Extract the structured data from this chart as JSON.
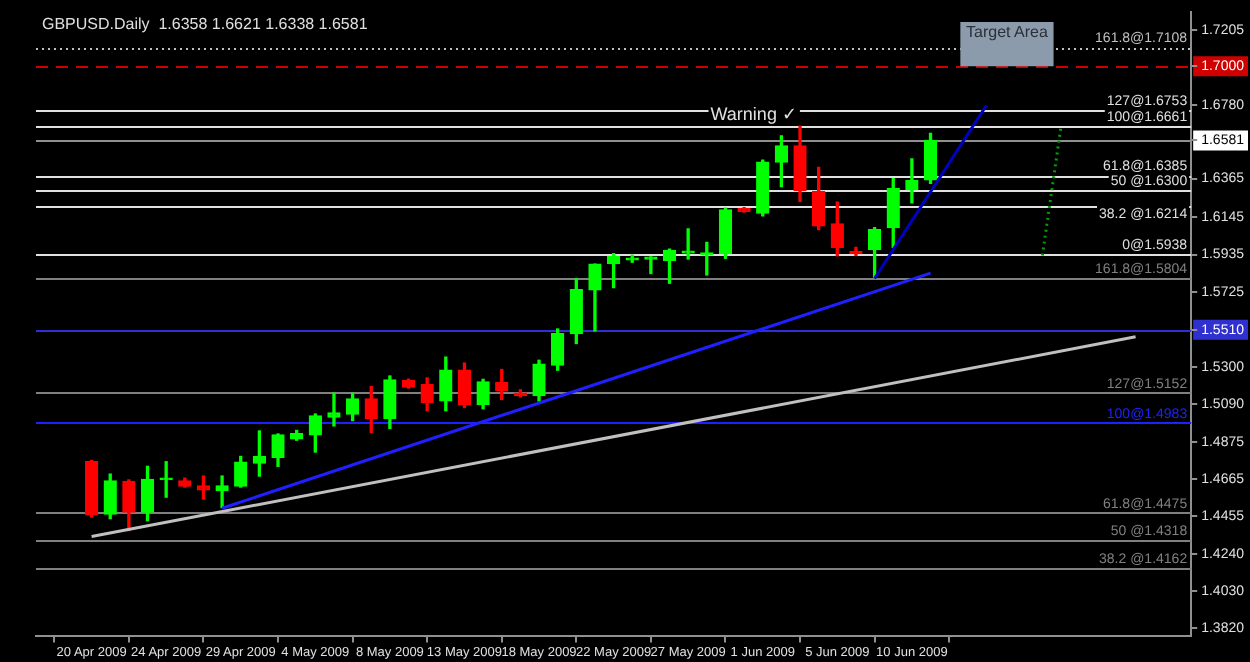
{
  "chart_data": {
    "type": "candlestick",
    "title": "GBPUSD.Daily  1.6358 1.6621 1.6338 1.6581",
    "categories": [
      "20 Apr 2009",
      null,
      null,
      null,
      "24 Apr 2009",
      null,
      null,
      null,
      "29 Apr 2009",
      null,
      null,
      null,
      "4 May 2009",
      null,
      null,
      null,
      "8 May 2009",
      null,
      null,
      null,
      "13 May 2009",
      null,
      null,
      null,
      "18 May 2009",
      null,
      null,
      null,
      "22 May 2009",
      null,
      null,
      null,
      "27 May 2009",
      null,
      null,
      null,
      "1 Jun 2009",
      null,
      null,
      null,
      "5 Jun 2009",
      null,
      null,
      null,
      "10 Jun 2009",
      null,
      null,
      null,
      null,
      null,
      null,
      null,
      null,
      null,
      null,
      null,
      null
    ],
    "ohlc": [
      [
        1.4763,
        1.477,
        1.445,
        1.4463
      ],
      [
        1.4467,
        1.4693,
        1.4441,
        1.4655
      ],
      [
        1.4652,
        1.466,
        1.4374,
        1.4478
      ],
      [
        1.4478,
        1.4737,
        1.443,
        1.4663
      ],
      [
        1.4663,
        1.4763,
        1.4563,
        1.467
      ],
      [
        1.4655,
        1.467,
        1.462,
        1.4626
      ],
      [
        1.4626,
        1.4682,
        1.4552,
        1.4604
      ],
      [
        1.46,
        1.4682,
        1.4504,
        1.4626
      ],
      [
        1.4626,
        1.4793,
        1.462,
        1.476
      ],
      [
        1.4755,
        1.4937,
        1.4682,
        1.4793
      ],
      [
        1.4788,
        1.492,
        1.4737,
        1.4915
      ],
      [
        1.4893,
        1.494,
        1.4885,
        1.4922
      ],
      [
        1.4915,
        1.5033,
        1.4818,
        1.5022
      ],
      [
        1.5015,
        1.5151,
        1.4966,
        1.504
      ],
      [
        1.5033,
        1.5151,
        1.4996,
        1.5118
      ],
      [
        1.5118,
        1.5188,
        1.4929,
        1.5007
      ],
      [
        1.5007,
        1.5248,
        1.4952,
        1.5226
      ],
      [
        1.5222,
        1.523,
        1.518,
        1.5185
      ],
      [
        1.5199,
        1.5237,
        1.5052,
        1.5099
      ],
      [
        1.5107,
        1.5355,
        1.5052,
        1.5281
      ],
      [
        1.5281,
        1.5321,
        1.507,
        1.5085
      ],
      [
        1.5088,
        1.5229,
        1.5063,
        1.5215
      ],
      [
        1.521,
        1.5285,
        1.5115,
        1.5166
      ],
      [
        1.5151,
        1.517,
        1.513,
        1.5137
      ],
      [
        1.5137,
        1.5337,
        1.5107,
        1.5315
      ],
      [
        1.531,
        1.5514,
        1.5281,
        1.5488
      ],
      [
        1.5488,
        1.5799,
        1.5432,
        1.5736
      ],
      [
        1.5736,
        1.5881,
        1.5503,
        1.5881
      ],
      [
        1.5884,
        1.594,
        1.5748,
        1.5925
      ],
      [
        1.5905,
        1.5932,
        1.5892,
        1.5915
      ],
      [
        1.591,
        1.5922,
        1.5828,
        1.592
      ],
      [
        1.5903,
        1.5966,
        1.5773,
        1.5958
      ],
      [
        1.5945,
        1.608,
        1.591,
        1.5955
      ],
      [
        1.5935,
        1.6004,
        1.582,
        1.5945
      ],
      [
        1.594,
        1.6198,
        1.5914,
        1.6187
      ],
      [
        1.6195,
        1.62,
        1.6175,
        1.618
      ],
      [
        1.6169,
        1.6469,
        1.6154,
        1.6458
      ],
      [
        1.6458,
        1.6606,
        1.632,
        1.655
      ],
      [
        1.655,
        1.6661,
        1.6236,
        1.6298
      ],
      [
        1.6291,
        1.6428,
        1.6076,
        1.6098
      ],
      [
        1.6109,
        1.6231,
        1.5928,
        1.5976
      ],
      [
        1.5952,
        1.5976,
        1.593,
        1.594
      ],
      [
        1.5965,
        1.6087,
        1.5804,
        1.6076
      ],
      [
        1.6087,
        1.6365,
        1.5976,
        1.6309
      ],
      [
        1.6302,
        1.6476,
        1.6228,
        1.6354
      ],
      [
        1.6358,
        1.6621,
        1.6338,
        1.6581
      ],
      null,
      null,
      null,
      null,
      null,
      null,
      null,
      null,
      null,
      null,
      null
    ],
    "colors": [
      "#ff0000",
      "#00ff00",
      "#ff0000",
      "#00ff00",
      "#00ff00",
      "#ff0000",
      "#ff0000",
      "#00ff00",
      "#00ff00",
      "#00ff00",
      "#00ff00",
      "#00ff00",
      "#00ff00",
      "#00ff00",
      "#00ff00",
      "#ff0000",
      "#00ff00",
      "#ff0000",
      "#ff0000",
      "#00ff00",
      "#ff0000",
      "#00ff00",
      "#ff0000",
      "#ff0000",
      "#00ff00",
      "#00ff00",
      "#00ff00",
      "#00ff00",
      "#00ff00",
      "#00ff00",
      "#00ff00",
      "#00ff00",
      "#00ff00",
      "#00ff00",
      "#00ff00",
      "#ff0000",
      "#00ff00",
      "#00ff00",
      "#ff0000",
      "#ff0000",
      "#ff0000",
      "#ff0000",
      "#00ff00",
      "#00ff00",
      "#00ff00",
      "#00ff00",
      null,
      null,
      null,
      null,
      null,
      null,
      null,
      null,
      null,
      null,
      null
    ],
    "series": [
      {
        "type": "line",
        "color": "#2020ff",
        "values": [
          null,
          null,
          null,
          null,
          null,
          null,
          null,
          1.45,
          null,
          null,
          null,
          null,
          null,
          null,
          null,
          null,
          null,
          null,
          null,
          null,
          null,
          null,
          null,
          null,
          null,
          null,
          null,
          null,
          null,
          null,
          null,
          null,
          null,
          null,
          null,
          null,
          null,
          null,
          null,
          null,
          null,
          null,
          null,
          null,
          null,
          1.583,
          null,
          null,
          null,
          null,
          null,
          null,
          null,
          null,
          null,
          null,
          null
        ],
        "line_style": "solid"
      },
      {
        "type": "line",
        "color": "#0000c0",
        "values": [
          null,
          null,
          null,
          null,
          null,
          null,
          null,
          null,
          null,
          null,
          null,
          null,
          null,
          null,
          null,
          null,
          null,
          null,
          null,
          null,
          null,
          null,
          null,
          null,
          null,
          null,
          null,
          null,
          null,
          null,
          null,
          null,
          null,
          null,
          null,
          null,
          null,
          null,
          null,
          null,
          null,
          null,
          1.58,
          null,
          null,
          null,
          null,
          null,
          1.678,
          null,
          null,
          null,
          null,
          null,
          null,
          null,
          null
        ],
        "line_style": "solid"
      },
      {
        "type": "line",
        "color": "#c0c0c0",
        "values": [
          1.434,
          null,
          null,
          null,
          null,
          null,
          null,
          null,
          null,
          null,
          null,
          null,
          null,
          null,
          null,
          null,
          null,
          null,
          null,
          null,
          null,
          null,
          null,
          null,
          null,
          null,
          null,
          null,
          null,
          null,
          null,
          null,
          null,
          null,
          null,
          null,
          null,
          null,
          null,
          null,
          null,
          null,
          null,
          null,
          null,
          null,
          null,
          null,
          null,
          null,
          null,
          null,
          null,
          null,
          null,
          null,
          1.547
        ],
        "line_style": "solid"
      },
      {
        "type": "line",
        "color": "#00a000",
        "values": [
          null,
          null,
          null,
          null,
          null,
          null,
          null,
          null,
          null,
          null,
          null,
          null,
          null,
          null,
          null,
          null,
          null,
          null,
          null,
          null,
          null,
          null,
          null,
          null,
          null,
          null,
          null,
          null,
          null,
          null,
          null,
          null,
          null,
          null,
          null,
          null,
          null,
          null,
          null,
          null,
          null,
          null,
          null,
          null,
          null,
          null,
          null,
          null,
          null,
          null,
          null,
          1.593,
          1.666,
          null,
          null,
          null,
          null
        ],
        "line_style": "dotted"
      }
    ],
    "ylim": [
      1.3775,
      1.7305
    ],
    "yticks": [
      1.7205,
      {
        "value": 1.7,
        "label": "1.7000"
      },
      {
        "value": 1.678,
        "label": "1.6780"
      },
      1.6581,
      1.6365,
      1.6145,
      1.5935,
      1.5725,
      {
        "value": 1.551,
        "label": "1.5510"
      },
      {
        "value": 1.53,
        "label": "1.5300"
      },
      {
        "value": 1.509,
        "label": "1.5090"
      },
      1.4875,
      1.4665,
      1.4455,
      {
        "value": 1.424,
        "label": "1.4240"
      },
      {
        "value": 1.403,
        "label": "1.4030"
      },
      {
        "value": 1.382,
        "label": "1.3820"
      }
    ],
    "ref_lines": [
      {
        "axis": "y",
        "value": 1.7108,
        "label": "161.8@1.7108",
        "color": "#c0c0c0",
        "line_style": "dotted"
      },
      {
        "axis": "y",
        "value": 1.6753,
        "label": "127@1.6753",
        "color": "#e0e0e0"
      },
      {
        "axis": "y",
        "value": 1.6661,
        "label": "100@1.6661",
        "color": "#e0e0e0"
      },
      {
        "axis": "y",
        "value": 1.6385,
        "label": "61.8@1.6385",
        "color": "#e0e0e0"
      },
      {
        "axis": "y",
        "value": 1.63,
        "label": "50 @1.6300",
        "color": "#e0e0e0"
      },
      {
        "axis": "y",
        "value": 1.6214,
        "label": "38.2 @1.6214",
        "color": "#e0e0e0"
      },
      {
        "axis": "y",
        "value": 1.5938,
        "label": "0@1.5938",
        "color": "#e0e0e0"
      },
      {
        "axis": "y",
        "value": 1.5804,
        "label": "161.8@1.5804",
        "color": "#808080"
      },
      {
        "axis": "y",
        "value": 1.5152,
        "label": "127@1.5152",
        "color": "#808080"
      },
      {
        "axis": "y",
        "value": 1.4983,
        "label": "100@1.4983",
        "color": "#2020ff"
      },
      {
        "axis": "y",
        "value": 1.4475,
        "label": "61.8@1.4475",
        "color": "#808080"
      },
      {
        "axis": "y",
        "value": 1.4318,
        "label": "50 @1.4318",
        "color": "#808080"
      },
      {
        "axis": "y",
        "value": 1.4162,
        "label": "38.2 @1.4162",
        "color": "#808080"
      },
      {
        "axis": "y",
        "value": 1.7,
        "color": "#d00000",
        "line_style": "dashed"
      },
      {
        "axis": "y",
        "value": 1.6581,
        "color": "#909090"
      },
      {
        "axis": "y",
        "value": 1.551,
        "color": "#3030d0"
      }
    ],
    "bands": [
      {
        "axis": "y",
        "from": 1.7,
        "to": 1.725,
        "label": "Target Area",
        "color": "#8c9bab"
      }
    ],
    "annotations": [
      "Warning ✓"
    ],
    "grid": false,
    "legend": false
  }
}
